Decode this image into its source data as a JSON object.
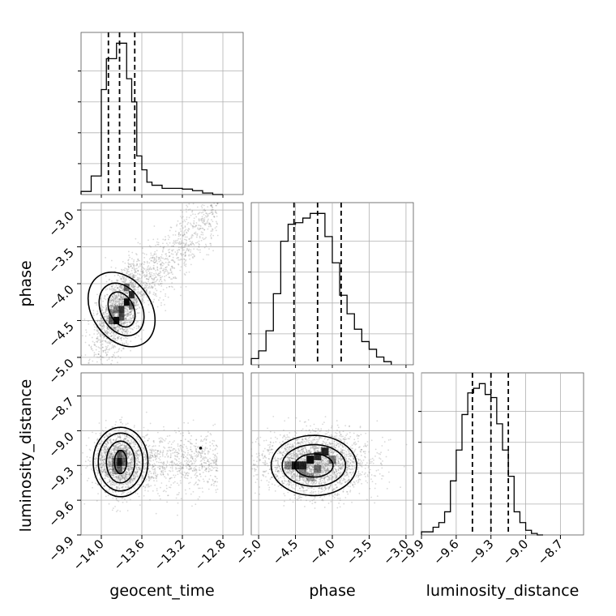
{
  "chart_data": {
    "type": "scatter",
    "parameters": [
      "geocent_time",
      "phase",
      "luminosity_distance"
    ],
    "axis_labels": {
      "x": [
        "geocent_time",
        "phase",
        "luminosity_distance"
      ],
      "y_row1": "phase",
      "y_row2": "luminosity_distance"
    },
    "ranges": {
      "geocent_time": [
        -14.2,
        -12.6
      ],
      "phase": [
        -5.1,
        -2.9
      ],
      "luminosity_distance": [
        -9.9,
        -8.5
      ]
    },
    "ticks": {
      "geocent_time": [
        {
          "v": -14.0,
          "label": "−14.0"
        },
        {
          "v": -13.6,
          "label": "−13.6"
        },
        {
          "v": -13.2,
          "label": "−13.2"
        },
        {
          "v": -12.8,
          "label": "−12.8"
        }
      ],
      "phase_x": [
        {
          "v": -5.0,
          "label": "−5.0"
        },
        {
          "v": -4.5,
          "label": "−4.5"
        },
        {
          "v": -4.0,
          "label": "−4.0"
        },
        {
          "v": -3.5,
          "label": "−3.5"
        },
        {
          "v": -3.0,
          "label": "−3.0"
        }
      ],
      "phase_y": [
        {
          "v": -3.0,
          "label": "−3.0"
        },
        {
          "v": -3.5,
          "label": "−3.5"
        },
        {
          "v": -4.0,
          "label": "−4.0"
        },
        {
          "v": -4.5,
          "label": "−4.5"
        },
        {
          "v": -5.0,
          "label": "−5.0"
        }
      ],
      "luminosity_distance_x": [
        {
          "v": -9.9,
          "label": "−9.9"
        },
        {
          "v": -9.6,
          "label": "−9.6"
        },
        {
          "v": -9.3,
          "label": "−9.3"
        },
        {
          "v": -9.0,
          "label": "−9.0"
        },
        {
          "v": -8.7,
          "label": "−8.7"
        }
      ],
      "luminosity_distance_y": [
        {
          "v": -8.7,
          "label": "−8.7"
        },
        {
          "v": -9.0,
          "label": "−9.0"
        },
        {
          "v": -9.3,
          "label": "−9.3"
        },
        {
          "v": -9.6,
          "label": "−9.6"
        },
        {
          "v": -9.9,
          "label": "−9.9"
        }
      ]
    },
    "histograms": {
      "geocent_time": {
        "bin_edges": [
          -14.2,
          -14.1,
          -14.0,
          -13.95,
          -13.9,
          -13.85,
          -13.8,
          -13.75,
          -13.7,
          -13.65,
          -13.6,
          -13.55,
          -13.5,
          -13.4,
          -13.3,
          -13.2,
          -13.1,
          -13.0,
          -12.9,
          -12.8
        ],
        "counts": [
          0.02,
          0.12,
          0.68,
          0.88,
          0.88,
          0.98,
          0.98,
          0.75,
          0.6,
          0.25,
          0.16,
          0.08,
          0.06,
          0.04,
          0.04,
          0.035,
          0.025,
          0.01,
          0.0
        ],
        "quantiles": [
          -13.93,
          -13.82,
          -13.67
        ]
      },
      "phase": {
        "bin_edges": [
          -5.1,
          -5.0,
          -4.9,
          -4.8,
          -4.7,
          -4.6,
          -4.5,
          -4.4,
          -4.3,
          -4.2,
          -4.1,
          -4.0,
          -3.9,
          -3.8,
          -3.7,
          -3.6,
          -3.5,
          -3.4,
          -3.3,
          -3.2
        ],
        "counts": [
          0.04,
          0.09,
          0.22,
          0.46,
          0.8,
          0.91,
          0.92,
          0.95,
          0.98,
          0.98,
          0.83,
          0.66,
          0.45,
          0.33,
          0.23,
          0.15,
          0.1,
          0.05,
          0.02
        ],
        "quantiles": [
          -4.52,
          -4.2,
          -3.88
        ]
      },
      "luminosity_distance": {
        "bin_edges": [
          -9.9,
          -9.8,
          -9.75,
          -9.7,
          -9.65,
          -9.6,
          -9.55,
          -9.5,
          -9.45,
          -9.4,
          -9.35,
          -9.3,
          -9.25,
          -9.2,
          -9.15,
          -9.1,
          -9.05,
          -9.0,
          -8.95,
          -8.9,
          -8.85
        ],
        "counts": [
          0.02,
          0.05,
          0.08,
          0.15,
          0.35,
          0.55,
          0.78,
          0.92,
          0.95,
          0.98,
          0.91,
          0.89,
          0.72,
          0.55,
          0.38,
          0.15,
          0.08,
          0.03,
          0.01,
          0.0
        ],
        "quantiles": [
          -9.46,
          -9.3,
          -9.15
        ]
      }
    },
    "contours": {
      "phase_vs_geocent_time": {
        "center": [
          -13.8,
          -4.35
        ],
        "levels": [
          {
            "rx": 0.12,
            "ry": 0.25,
            "angle": 25
          },
          {
            "rx": 0.2,
            "ry": 0.38,
            "angle": 30
          },
          {
            "rx": 0.29,
            "ry": 0.55,
            "angle": 35
          }
        ]
      },
      "luminosity_distance_vs_geocent_time": {
        "center": [
          -13.81,
          -9.27
        ],
        "levels": [
          {
            "rx": 0.06,
            "ry": 0.1,
            "angle": 0
          },
          {
            "rx": 0.14,
            "ry": 0.18,
            "angle": 0
          },
          {
            "rx": 0.22,
            "ry": 0.25,
            "angle": 0
          },
          {
            "rx": 0.27,
            "ry": 0.3,
            "angle": 0
          }
        ]
      },
      "luminosity_distance_vs_phase": {
        "center": [
          -4.25,
          -9.3
        ],
        "levels": [
          {
            "rx": 0.26,
            "ry": 0.1,
            "angle": 0
          },
          {
            "rx": 0.43,
            "ry": 0.18,
            "angle": 0
          },
          {
            "rx": 0.58,
            "ry": 0.26,
            "angle": 0
          }
        ]
      }
    },
    "grid": true,
    "legend": "none"
  }
}
